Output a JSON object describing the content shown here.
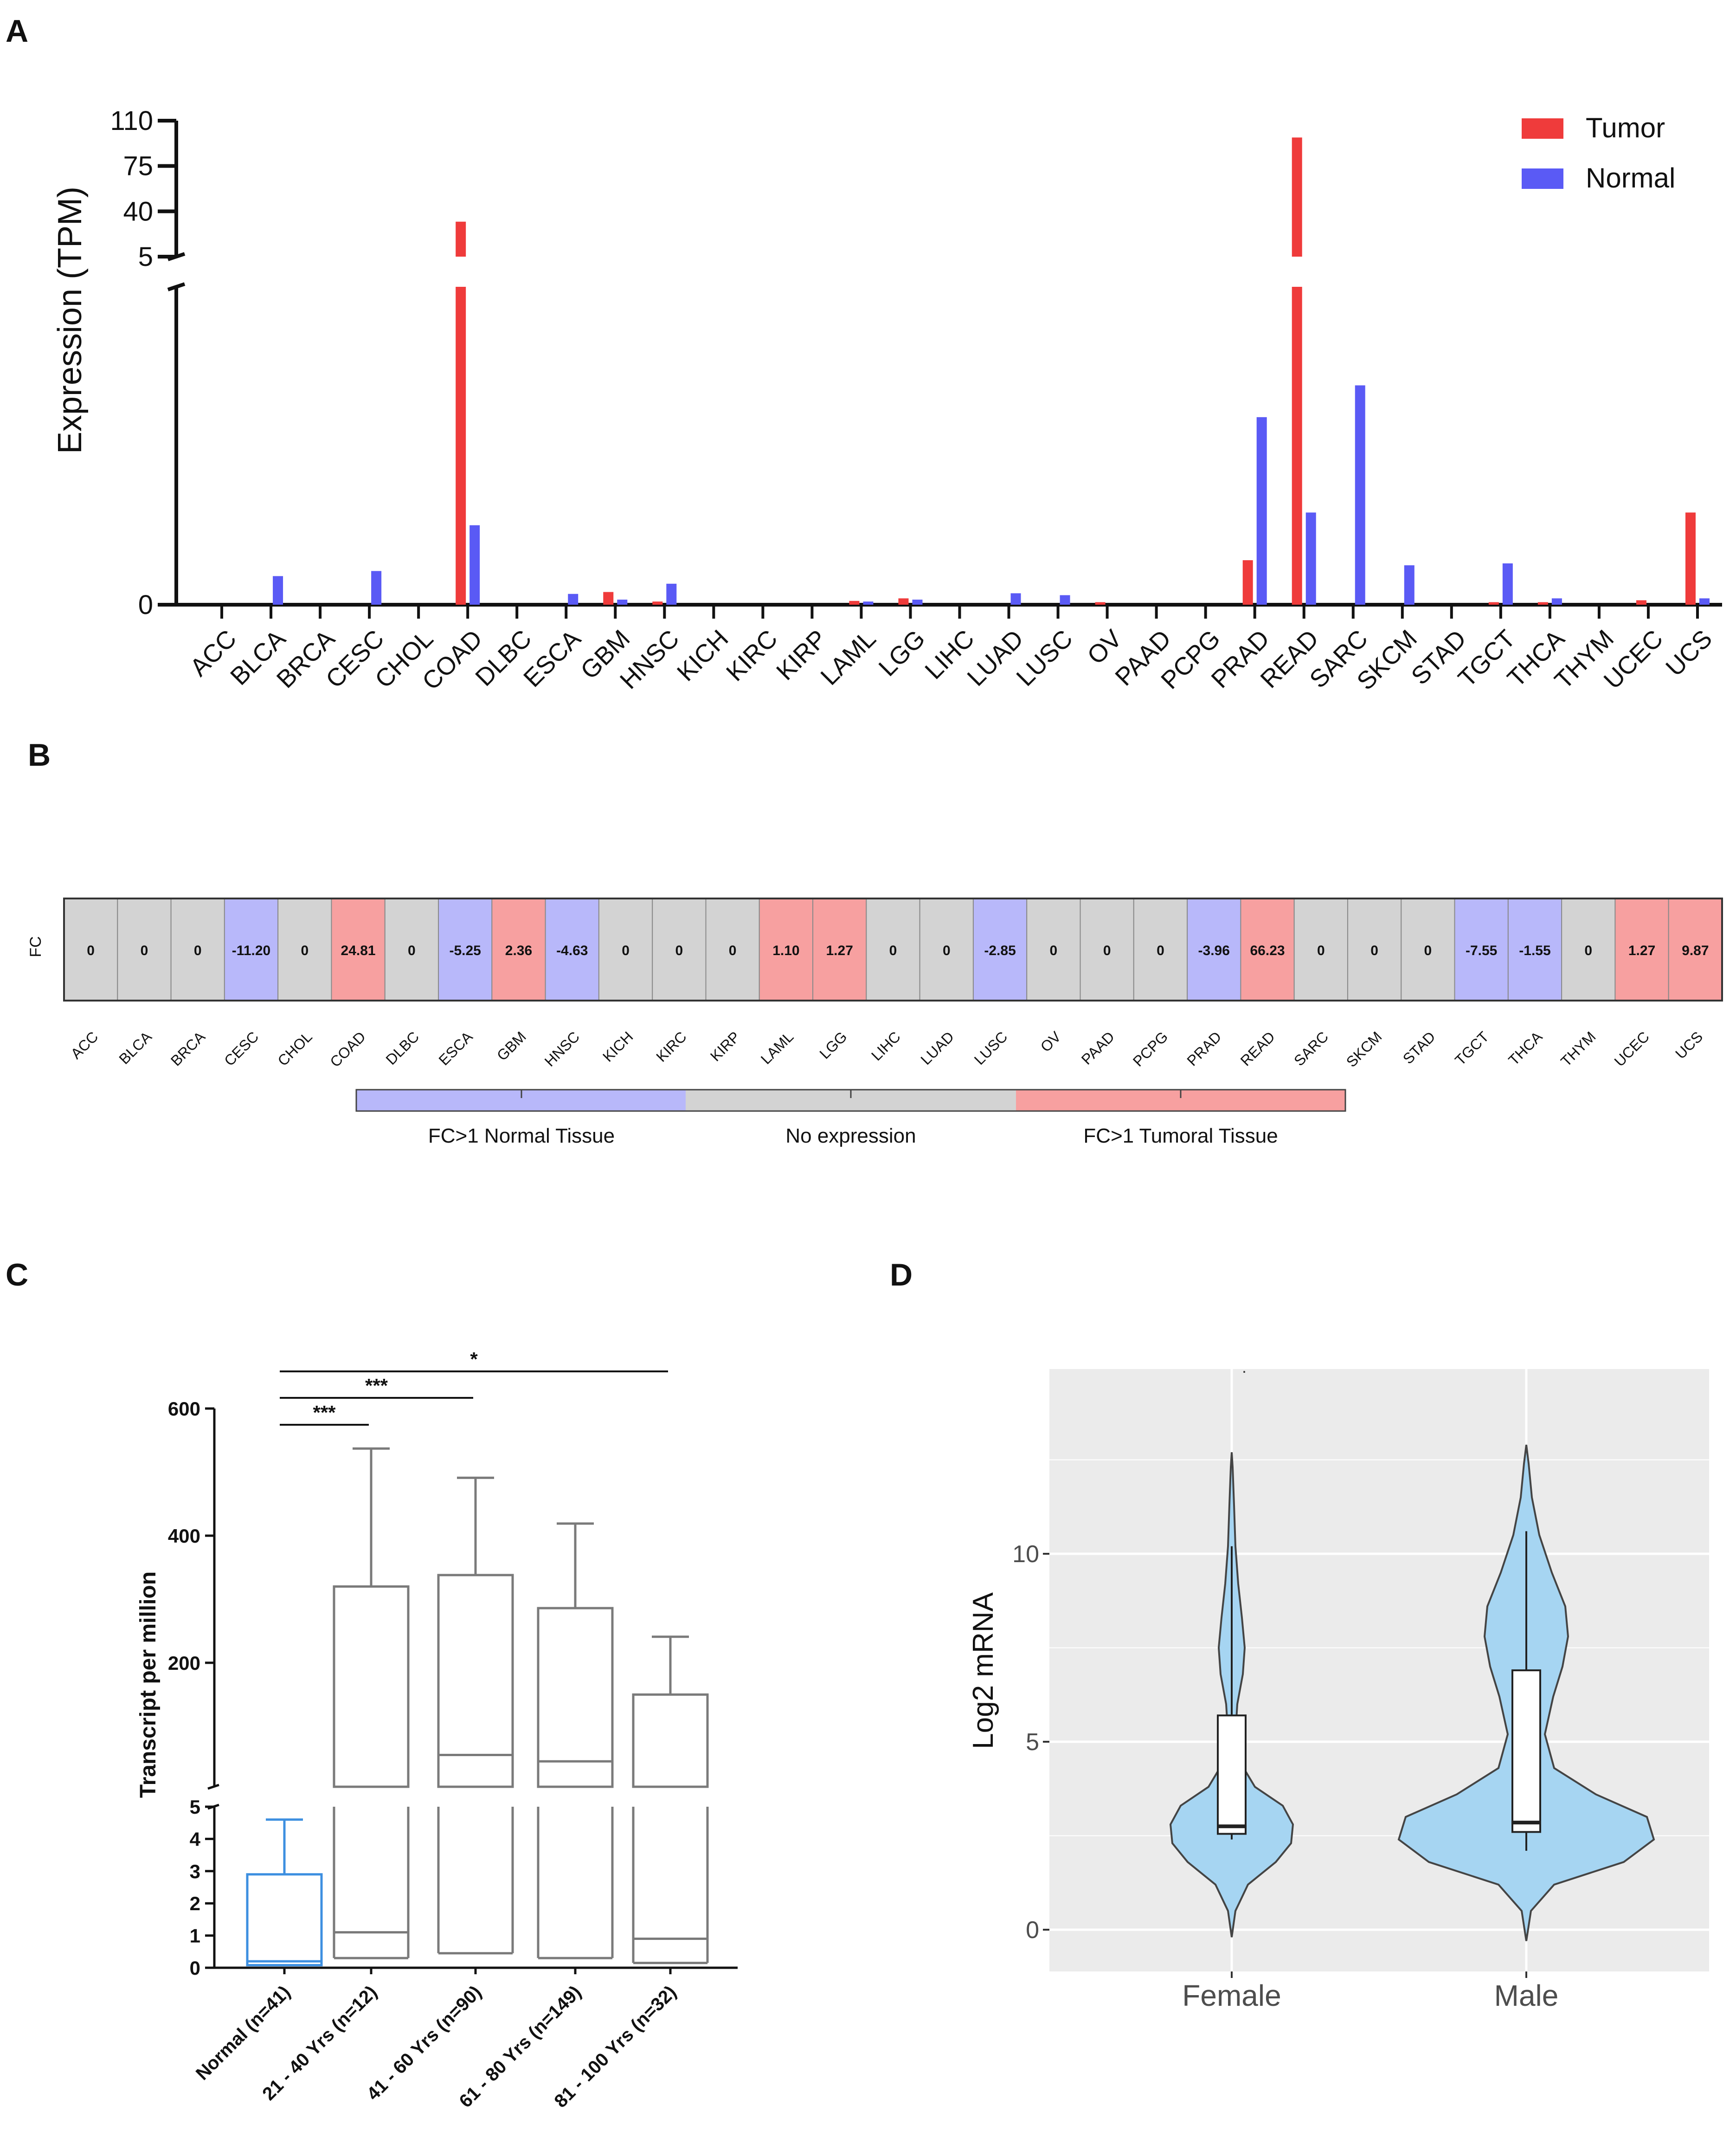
{
  "panels": {
    "a": "A",
    "b": "B",
    "c": "C",
    "d": "D"
  },
  "colors": {
    "tumor": "#ef3b3b",
    "normal": "#5a5af5",
    "fc_neg": "#b8b8fa",
    "fc_zero": "#d3d3d3",
    "fc_pos": "#f7a0a0",
    "box_normal": "#3d8fe0",
    "box_age": "#7a7a7a",
    "violin": "#a6d5f2",
    "ggbg": "#ebebeb"
  },
  "chart_data": [
    {
      "id": "A",
      "type": "bar",
      "title": "",
      "xlabel": "",
      "ylabel": "Expression (TPM)",
      "legend": [
        "Tumor",
        "Normal"
      ],
      "legend_position": "top-right",
      "y_break": true,
      "ylim_lower": [
        0,
        5
      ],
      "ylim_upper": [
        5,
        110
      ],
      "y_ticks_lower": [
        "0"
      ],
      "y_ticks_upper": [
        "5",
        "40",
        "75",
        "110"
      ],
      "categories": [
        "ACC",
        "BLCA",
        "BRCA",
        "CESC",
        "CHOL",
        "COAD",
        "DLBC",
        "ESCA",
        "GBM",
        "HNSC",
        "KICH",
        "KIRC",
        "KIRP",
        "LAML",
        "LGG",
        "LIHC",
        "LUAD",
        "LUSC",
        "OV",
        "PAAD",
        "PCPG",
        "PRAD",
        "READ",
        "SARC",
        "SKCM",
        "STAD",
        "TGCT",
        "THCA",
        "THYM",
        "UCEC",
        "UCS"
      ],
      "series": [
        {
          "name": "Tumor",
          "values": [
            0,
            0,
            0,
            0,
            0,
            32,
            0,
            0,
            0.2,
            0.05,
            0,
            0,
            0,
            0.06,
            0.1,
            0,
            0,
            0,
            0.04,
            0,
            0,
            0.7,
            97,
            0,
            0,
            0,
            0.04,
            0.04,
            0,
            0.07,
            1.45
          ]
        },
        {
          "name": "Normal",
          "values": [
            0,
            0.45,
            0,
            0.53,
            0,
            1.25,
            0,
            0.17,
            0.08,
            0.33,
            0,
            0,
            0,
            0.05,
            0.08,
            0,
            0.18,
            0.15,
            0,
            0,
            0,
            2.95,
            1.45,
            3.45,
            0.62,
            0,
            0.65,
            0.1,
            0,
            0,
            0.1
          ]
        }
      ]
    },
    {
      "id": "B",
      "type": "heatmap",
      "row_label": "FC",
      "categories": [
        "ACC",
        "BLCA",
        "BRCA",
        "CESC",
        "CHOL",
        "COAD",
        "DLBC",
        "ESCA",
        "GBM",
        "HNSC",
        "KICH",
        "KIRC",
        "KIRP",
        "LAML",
        "LGG",
        "LIHC",
        "LUAD",
        "LUSC",
        "OV",
        "PAAD",
        "PCPG",
        "PRAD",
        "READ",
        "SARC",
        "SKCM",
        "STAD",
        "TGCT",
        "THCA",
        "THYM",
        "UCEC",
        "UCS"
      ],
      "values": [
        "0",
        "0",
        "0",
        "-11.20",
        "0",
        "24.81",
        "0",
        "-5.25",
        "2.36",
        "-4.63",
        "0",
        "0",
        "0",
        "1.10",
        "1.27",
        "0",
        "0",
        "-2.85",
        "0",
        "0",
        "0",
        "-3.96",
        "66.23",
        "0",
        "0",
        "0",
        "-7.55",
        "-1.55",
        "0",
        "1.27",
        "9.87"
      ],
      "legend": [
        "FC>1 Normal Tissue",
        "No expression",
        "FC>1 Tumoral Tissue"
      ]
    },
    {
      "id": "C",
      "type": "box",
      "ylabel": "Transcript per million",
      "y_break": true,
      "ylim_lower": [
        0,
        5
      ],
      "ylim_upper": [
        5,
        600
      ],
      "y_ticks_lower": [
        "0",
        "1",
        "2",
        "3",
        "4",
        "5"
      ],
      "y_ticks_upper": [
        "200",
        "400",
        "600"
      ],
      "categories": [
        "Normal (n=41)",
        "21 - 40 Yrs (n=12)",
        "41 - 60 Yrs (n=90)",
        "61 - 80 Yrs (n=149)",
        "81 - 100 Yrs (n=32)"
      ],
      "boxes": [
        {
          "min": 0.05,
          "q1": 0.08,
          "median": 0.2,
          "q3": 2.9,
          "max": 4.6
        },
        {
          "min": 0.3,
          "q1": 0.3,
          "median": 1.1,
          "q3": 320,
          "max": 537
        },
        {
          "min": 0.45,
          "q1": 0.45,
          "median": 55,
          "q3": 338,
          "max": 491
        },
        {
          "min": 0.3,
          "q1": 0.3,
          "median": 45,
          "q3": 286,
          "max": 419
        },
        {
          "min": 0.15,
          "q1": 0.15,
          "median": 0.9,
          "q3": 150,
          "max": 241
        }
      ],
      "significance": [
        {
          "from": 0,
          "to": 1,
          "label": "***"
        },
        {
          "from": 0,
          "to": 2,
          "label": "***"
        },
        {
          "from": 0,
          "to": 4,
          "label": "*"
        }
      ]
    },
    {
      "id": "D",
      "type": "violin",
      "ylabel": "Log2 mRNA",
      "ylim": [
        -1,
        15
      ],
      "y_ticks": [
        "0",
        "5",
        "10"
      ],
      "categories": [
        "Female",
        "Male"
      ],
      "boxes": [
        {
          "min": 2.4,
          "q1": 2.55,
          "median": 2.75,
          "q3": 5.7,
          "max": 10.2
        },
        {
          "min": 2.1,
          "q1": 2.6,
          "median": 2.85,
          "q3": 6.9,
          "max": 10.6
        }
      ]
    }
  ]
}
